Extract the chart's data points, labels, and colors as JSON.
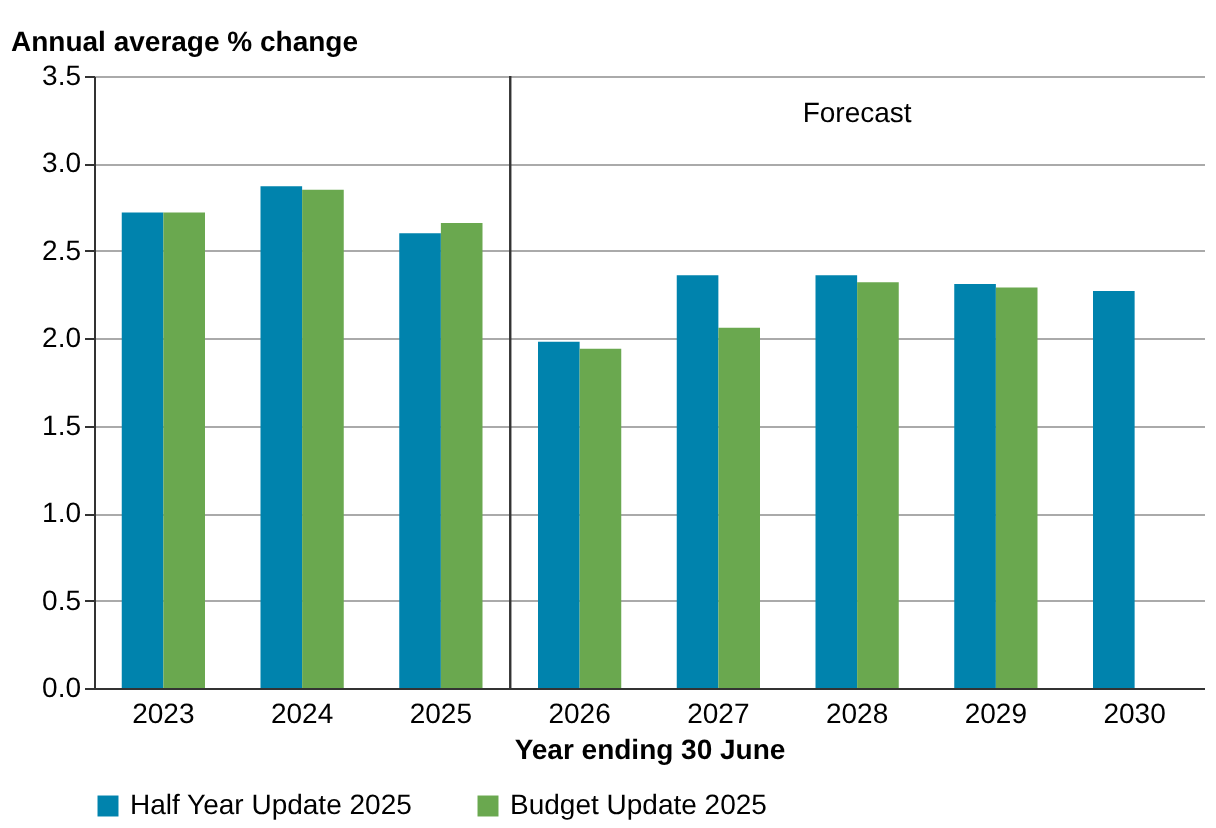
{
  "chart_data": {
    "type": "bar",
    "ylabel": "Annual average % change",
    "xlabel": "Year ending 30 June",
    "categories": [
      "2023",
      "2024",
      "2025",
      "2026",
      "2027",
      "2028",
      "2029",
      "2030"
    ],
    "series": [
      {
        "name": "Half Year Update 2025",
        "color": "#0083ad",
        "values": [
          2.72,
          2.87,
          2.6,
          1.98,
          2.36,
          2.36,
          2.31,
          2.27
        ]
      },
      {
        "name": "Budget Update 2025",
        "color": "#6aa84f",
        "values": [
          2.72,
          2.85,
          2.66,
          1.94,
          2.06,
          2.32,
          2.29,
          null
        ]
      }
    ],
    "ylim": [
      0,
      3.5
    ],
    "yticks": [
      {
        "value": 0,
        "label": "0.0"
      },
      0.5,
      {
        "value": 1,
        "label": "1.0"
      },
      1.5,
      {
        "value": 2,
        "label": "2.0"
      },
      2.5,
      {
        "value": 3,
        "label": "3.0"
      },
      3.5
    ],
    "ref_lines": [
      {
        "axis": "x",
        "value": "2026",
        "color": "#333333"
      }
    ],
    "annotations": [
      "Forecast"
    ],
    "grid": "y",
    "legend": "bottom"
  }
}
